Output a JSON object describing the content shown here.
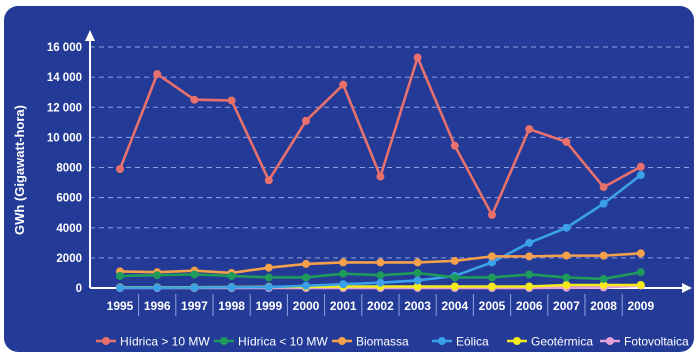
{
  "chart_data": {
    "type": "line",
    "ylabel": "GWh (Gigawatt-hora)",
    "xlabel": "",
    "ylim": [
      0,
      16000
    ],
    "yticks": [
      0,
      2000,
      4000,
      6000,
      8000,
      10000,
      12000,
      14000,
      16000
    ],
    "ytick_labels": [
      "0",
      "2000",
      "4000",
      "6000",
      "8000",
      "10 000",
      "12 000",
      "14 000",
      "16 000"
    ],
    "categories": [
      "1995",
      "1996",
      "1997",
      "1998",
      "1999",
      "2000",
      "2001",
      "2002",
      "2003",
      "2004",
      "2005",
      "2006",
      "2007",
      "2008",
      "2009"
    ],
    "grid": true,
    "legend_position": "bottom",
    "series": [
      {
        "name": "Hídrica > 10 MW",
        "color": "#e8706d",
        "values": [
          7900,
          14200,
          12500,
          12450,
          7150,
          11100,
          13500,
          7400,
          15300,
          9450,
          4850,
          10550,
          9700,
          6700,
          8050
        ]
      },
      {
        "name": "Hídrica < 10 MW",
        "color": "#1e9a5a",
        "values": [
          800,
          850,
          900,
          800,
          700,
          700,
          950,
          850,
          1000,
          700,
          700,
          900,
          700,
          600,
          1050
        ]
      },
      {
        "name": "Biomassa",
        "color": "#f5a04a",
        "values": [
          1100,
          1050,
          1150,
          1000,
          1350,
          1600,
          1700,
          1700,
          1700,
          1800,
          2100,
          2100,
          2150,
          2150,
          2300
        ]
      },
      {
        "name": "Eólica",
        "color": "#3aa1e8",
        "values": [
          20,
          20,
          30,
          50,
          60,
          150,
          250,
          350,
          500,
          800,
          1700,
          3000,
          4000,
          5600,
          7500
        ]
      },
      {
        "name": "Geotérmica",
        "color": "#f4ea1c",
        "values": [
          40,
          40,
          50,
          60,
          80,
          80,
          100,
          100,
          100,
          100,
          100,
          100,
          200,
          200,
          200
        ]
      },
      {
        "name": "Fotovoltaica",
        "color": "#e6a0d8",
        "values": [
          0,
          0,
          0,
          0,
          0,
          0,
          0,
          0,
          0,
          0,
          0,
          0,
          20,
          40,
          160
        ]
      }
    ]
  }
}
